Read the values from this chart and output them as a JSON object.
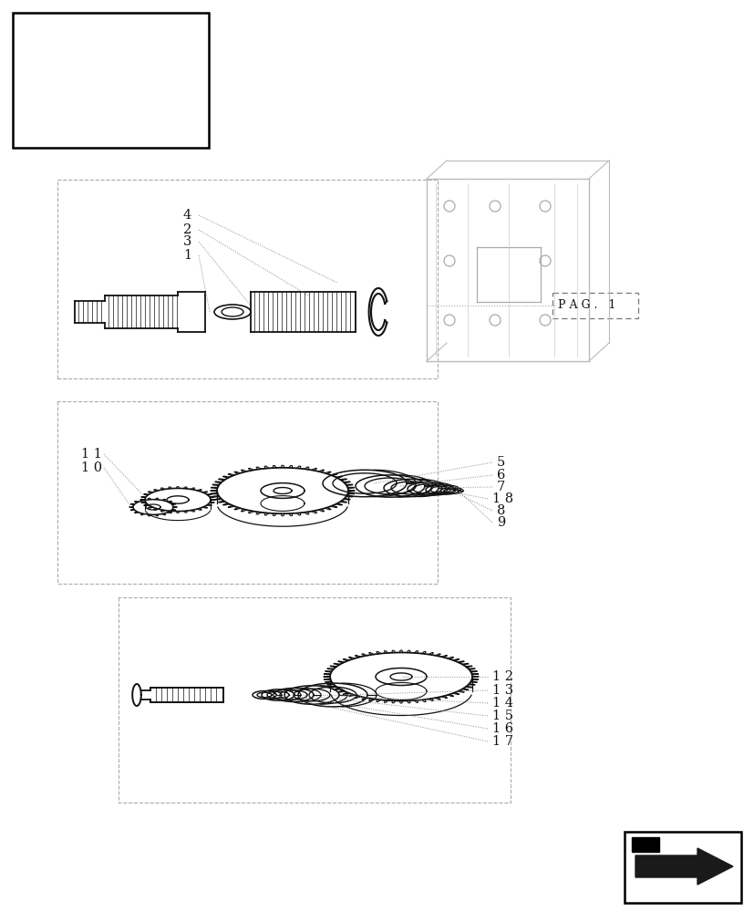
{
  "bg_color": "#ffffff",
  "lc": "#111111",
  "gc": "#555555",
  "dotted": "#888888",
  "fig_width": 8.28,
  "fig_height": 10.0,
  "top_labels": [
    [
      "4",
      218,
      236
    ],
    [
      "2",
      218,
      253
    ],
    [
      "3",
      218,
      265
    ],
    [
      "1",
      218,
      280
    ]
  ],
  "mid_labels_left": [
    [
      "1 1",
      112,
      498
    ],
    [
      "1 0",
      112,
      513
    ]
  ],
  "mid_labels_right": [
    [
      "5",
      545,
      507
    ],
    [
      "6",
      545,
      521
    ],
    [
      "7",
      545,
      534
    ],
    [
      "1 8",
      540,
      547
    ],
    [
      "8",
      545,
      560
    ],
    [
      "9",
      545,
      573
    ]
  ],
  "bot_labels": [
    [
      "1 2",
      540,
      742
    ],
    [
      "1 3",
      540,
      757
    ],
    [
      "1 4",
      540,
      771
    ],
    [
      "1 5",
      540,
      785
    ],
    [
      "1 6",
      540,
      799
    ],
    [
      "1 7",
      540,
      813
    ]
  ],
  "pag_text": "P A G .   1"
}
